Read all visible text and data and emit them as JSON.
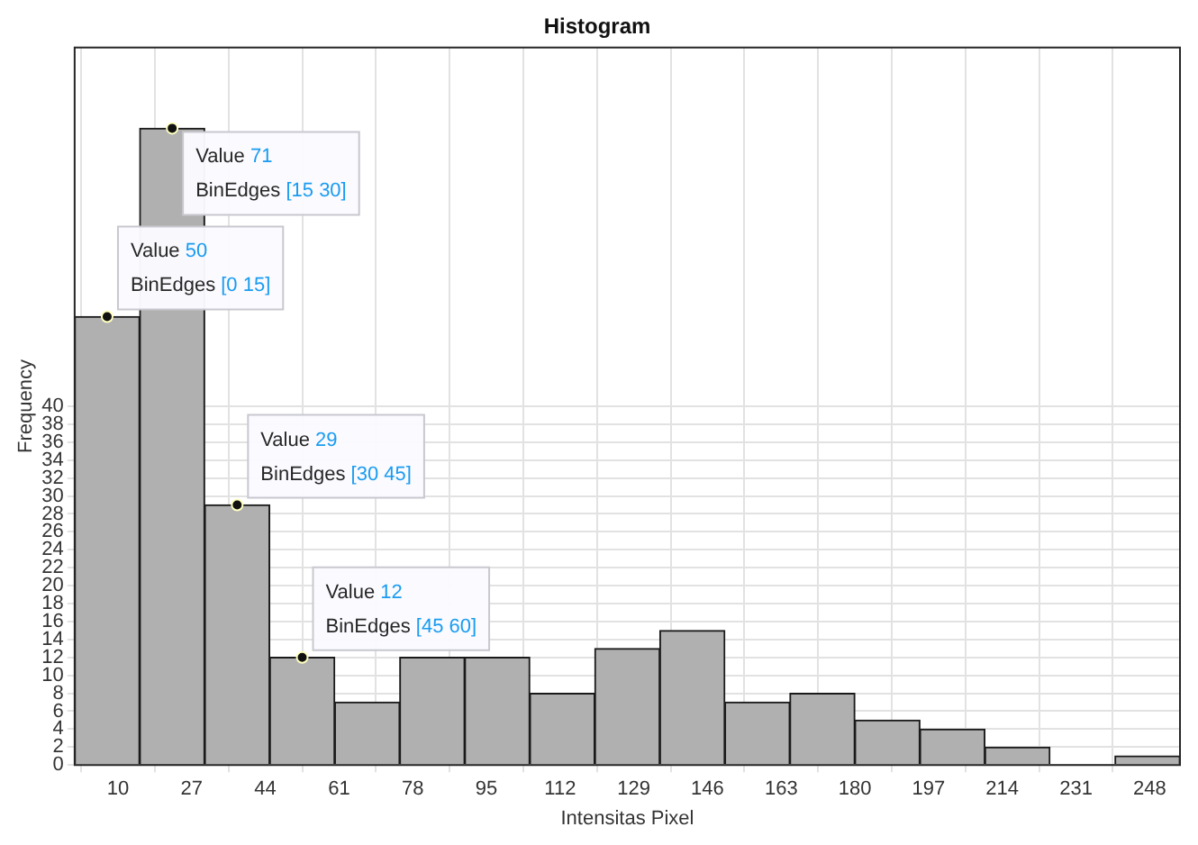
{
  "chart_data": {
    "type": "histogram",
    "title": "Histogram",
    "xlabel": "Intensitas Pixel",
    "ylabel": "Frequency",
    "bins": [
      0,
      15,
      30,
      45,
      60,
      75,
      90,
      105,
      120,
      135,
      150,
      165,
      180,
      195,
      210,
      225,
      240,
      255
    ],
    "values": [
      50,
      71,
      29,
      12,
      7,
      12,
      12,
      8,
      13,
      15,
      7,
      8,
      5,
      4,
      2,
      0,
      1
    ],
    "color": "#b0b0b0",
    "xlim": [
      0,
      255
    ],
    "xticks": [
      10,
      27,
      44,
      61,
      78,
      95,
      112,
      129,
      146,
      163,
      180,
      197,
      214,
      231,
      248
    ],
    "ylim": [
      0,
      80
    ],
    "yticks": [
      0,
      2,
      4,
      6,
      8,
      10,
      12,
      14,
      16,
      18,
      20,
      22,
      24,
      26,
      28,
      30,
      32,
      34,
      36,
      38,
      40
    ],
    "grid": true,
    "legend": false,
    "annotations": [
      {
        "text": "Value 71\nBinEdges [15 30]",
        "x": 22.5,
        "y": 71
      },
      {
        "text": "Value 50\nBinEdges [0 15]",
        "x": 7.5,
        "y": 50
      },
      {
        "text": "Value 29\nBinEdges [30 45]",
        "x": 37.5,
        "y": 29
      },
      {
        "text": "Value 12\nBinEdges [45 60]",
        "x": 52.5,
        "y": 12
      }
    ]
  }
}
